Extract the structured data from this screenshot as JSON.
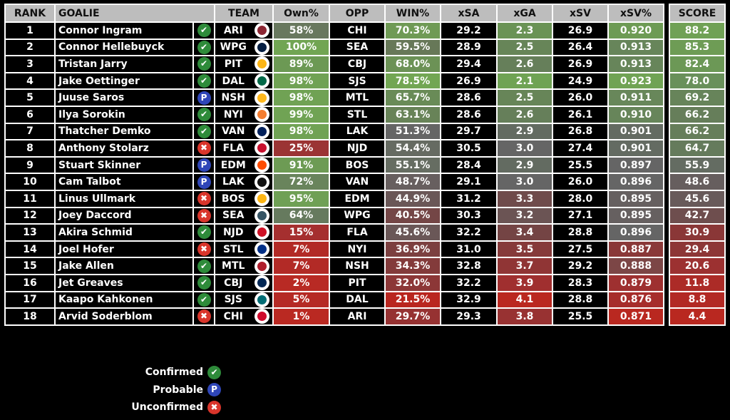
{
  "headers": {
    "rank": "RANK",
    "goalie": "GOALIE",
    "team": "TEAM",
    "own": "Own%",
    "opp": "OPP",
    "win": "WIN%",
    "xsa": "xSA",
    "xga": "xGA",
    "xsv": "xSV",
    "xsvp": "xSV%",
    "score": "SCORE"
  },
  "status_glyphs": {
    "confirmed": "✔",
    "probable": "P",
    "unconfirmed": "✖"
  },
  "team_colors": {
    "ARI": "#8c2633",
    "WPG": "#041e42",
    "PIT": "#fcb514",
    "DAL": "#006847",
    "NSH": "#ffb81c",
    "NYI": "#f47d30",
    "VAN": "#00205b",
    "FLA": "#c8102e",
    "EDM": "#ff4c00",
    "LAK": "#111111",
    "BOS": "#fcb514",
    "SEA": "#355464",
    "NJD": "#ce1126",
    "STL": "#002f87",
    "MTL": "#af1e2d",
    "CBJ": "#002654",
    "SJS": "#006d75",
    "CHI": "#cf0a2c"
  },
  "rows": [
    {
      "rank": "1",
      "goalie": "Connor Ingram",
      "status": "confirmed",
      "team": "ARI",
      "own": "58%",
      "opp": "CHI",
      "win": "70.3%",
      "xsa": "29.2",
      "xga": "2.3",
      "xsv": "26.9",
      "xsvp": "0.920",
      "score": "88.2",
      "c": {
        "own": "#68785e",
        "win": "#6f9a55",
        "xga": "#6a9355",
        "xsvp": "#6d9b54",
        "score": "#70a155"
      }
    },
    {
      "rank": "2",
      "goalie": "Connor Hellebuyck",
      "status": "confirmed",
      "team": "WPG",
      "own": "100%",
      "opp": "SEA",
      "win": "59.5%",
      "xsa": "28.9",
      "xga": "2.5",
      "xsv": "26.4",
      "xsvp": "0.913",
      "score": "85.3",
      "c": {
        "own": "#71a553",
        "win": "#677858",
        "xga": "#678558",
        "xsvp": "#67855a",
        "score": "#6e9c55"
      }
    },
    {
      "rank": "3",
      "goalie": "Tristan Jarry",
      "status": "confirmed",
      "team": "PIT",
      "own": "89%",
      "opp": "CBJ",
      "win": "68.0%",
      "xsa": "29.4",
      "xga": "2.6",
      "xsv": "26.9",
      "xsvp": "0.913",
      "score": "82.4",
      "c": {
        "own": "#6c9954",
        "win": "#6c9256",
        "xga": "#667f5a",
        "xsvp": "#67855a",
        "score": "#6c9856"
      }
    },
    {
      "rank": "4",
      "goalie": "Jake Oettinger",
      "status": "confirmed",
      "team": "DAL",
      "own": "98%",
      "opp": "SJS",
      "win": "78.5%",
      "xsa": "26.9",
      "xga": "2.1",
      "xsv": "24.9",
      "xsvp": "0.923",
      "score": "78.0",
      "c": {
        "own": "#70a254",
        "win": "#72a653",
        "xga": "#6fa354",
        "xsvp": "#70a354",
        "score": "#69905a"
      }
    },
    {
      "rank": "5",
      "goalie": "Juuse Saros",
      "status": "probable",
      "team": "NSH",
      "own": "98%",
      "opp": "MTL",
      "win": "65.7%",
      "xsa": "28.6",
      "xga": "2.5",
      "xsv": "26.0",
      "xsvp": "0.911",
      "score": "69.2",
      "c": {
        "own": "#70a254",
        "win": "#698b57",
        "xga": "#678558",
        "xsvp": "#68875a",
        "score": "#67845a"
      }
    },
    {
      "rank": "6",
      "goalie": "Ilya Sorokin",
      "status": "confirmed",
      "team": "NYI",
      "own": "99%",
      "opp": "STL",
      "win": "63.1%",
      "xsa": "28.6",
      "xga": "2.6",
      "xsv": "26.1",
      "xsvp": "0.910",
      "score": "66.2",
      "c": {
        "own": "#70a354",
        "win": "#688358",
        "xga": "#667f5a",
        "xsvp": "#67855a",
        "score": "#667e5a"
      }
    },
    {
      "rank": "7",
      "goalie": "Thatcher Demko",
      "status": "confirmed",
      "team": "VAN",
      "own": "98%",
      "opp": "LAK",
      "win": "51.3%",
      "xsa": "29.7",
      "xga": "2.9",
      "xsv": "26.8",
      "xsvp": "0.901",
      "score": "66.2",
      "c": {
        "own": "#70a254",
        "win": "#656565",
        "xga": "#636b61",
        "xsvp": "#646b62",
        "score": "#667e5a"
      }
    },
    {
      "rank": "8",
      "goalie": "Anthony Stolarz",
      "status": "unconfirmed",
      "team": "FLA",
      "own": "25%",
      "opp": "NJD",
      "win": "54.4%",
      "xsa": "30.5",
      "xga": "3.0",
      "xsv": "27.4",
      "xsvp": "0.901",
      "score": "64.7",
      "c": {
        "own": "#9b3434",
        "win": "#666b62",
        "xga": "#656565",
        "xsvp": "#646b62",
        "score": "#657b5c"
      }
    },
    {
      "rank": "9",
      "goalie": "Stuart Skinner",
      "status": "probable",
      "team": "EDM",
      "own": "91%",
      "opp": "BOS",
      "win": "55.1%",
      "xsa": "28.4",
      "xga": "2.9",
      "xsv": "25.5",
      "xsvp": "0.897",
      "score": "55.9",
      "c": {
        "own": "#6d9b54",
        "win": "#666d62",
        "xga": "#636b61",
        "xsvp": "#656565",
        "score": "#646c62"
      }
    },
    {
      "rank": "10",
      "goalie": "Cam Talbot",
      "status": "probable",
      "team": "LAK",
      "own": "72%",
      "opp": "VAN",
      "win": "48.7%",
      "xsa": "29.1",
      "xga": "3.0",
      "xsv": "26.0",
      "xsvp": "0.896",
      "score": "48.6",
      "c": {
        "own": "#69845c",
        "win": "#675f5f",
        "xga": "#656565",
        "xsvp": "#656565",
        "score": "#665e5e"
      }
    },
    {
      "rank": "11",
      "goalie": "Linus Ullmark",
      "status": "unconfirmed",
      "team": "BOS",
      "own": "95%",
      "opp": "EDM",
      "win": "44.9%",
      "xsa": "31.2",
      "xga": "3.3",
      "xsv": "28.0",
      "xsvp": "0.895",
      "score": "45.6",
      "c": {
        "own": "#6fa055",
        "win": "#6a5757",
        "xga": "#6f4b4b",
        "xsvp": "#666060",
        "score": "#685a5a"
      }
    },
    {
      "rank": "12",
      "goalie": "Joey Daccord",
      "status": "unconfirmed",
      "team": "SEA",
      "own": "64%",
      "opp": "WPG",
      "win": "40.5%",
      "xsa": "30.3",
      "xga": "3.2",
      "xsv": "27.1",
      "xsvp": "0.895",
      "score": "42.7",
      "c": {
        "own": "#667a5e",
        "win": "#744646",
        "xga": "#6b5454",
        "xsvp": "#666060",
        "score": "#6e4e4e"
      }
    },
    {
      "rank": "13",
      "goalie": "Akira Schmid",
      "status": "confirmed",
      "team": "NJD",
      "own": "15%",
      "opp": "FLA",
      "win": "45.6%",
      "xsa": "32.2",
      "xga": "3.4",
      "xsv": "28.8",
      "xsvp": "0.896",
      "score": "30.9",
      "c": {
        "own": "#a52f2f",
        "win": "#6a5757",
        "xga": "#744444",
        "xsvp": "#656565",
        "score": "#8a3737"
      }
    },
    {
      "rank": "14",
      "goalie": "Joel Hofer",
      "status": "unconfirmed",
      "team": "STL",
      "own": "7%",
      "opp": "NYI",
      "win": "36.9%",
      "xsa": "31.0",
      "xga": "3.5",
      "xsv": "27.5",
      "xsvp": "0.887",
      "score": "29.4",
      "c": {
        "own": "#b22a26",
        "win": "#7c4040",
        "xga": "#863a3a",
        "xsvp": "#8a3838",
        "score": "#8d3636"
      }
    },
    {
      "rank": "15",
      "goalie": "Jake Allen",
      "status": "confirmed",
      "team": "MTL",
      "own": "7%",
      "opp": "NSH",
      "win": "34.3%",
      "xsa": "32.8",
      "xga": "3.7",
      "xsv": "29.2",
      "xsvp": "0.888",
      "score": "20.6",
      "c": {
        "own": "#b22a26",
        "win": "#833b3b",
        "xga": "#903535",
        "xsvp": "#7c4646",
        "score": "#9c3131"
      }
    },
    {
      "rank": "16",
      "goalie": "Jet Greaves",
      "status": "confirmed",
      "team": "CBJ",
      "own": "2%",
      "opp": "PIT",
      "win": "32.0%",
      "xsa": "32.2",
      "xga": "3.9",
      "xsv": "28.3",
      "xsvp": "0.879",
      "score": "11.8",
      "c": {
        "own": "#b82a24",
        "win": "#8c3737",
        "xga": "#a02f2f",
        "xsvp": "#9e3030",
        "score": "#ac2b27"
      }
    },
    {
      "rank": "17",
      "goalie": "Kaapo Kahkonen",
      "status": "confirmed",
      "team": "SJS",
      "own": "5%",
      "opp": "DAL",
      "win": "21.5%",
      "xsa": "32.9",
      "xga": "4.1",
      "xsv": "28.8",
      "xsvp": "0.876",
      "score": "8.8",
      "c": {
        "own": "#b52a25",
        "win": "#b9261f",
        "xga": "#ba2820",
        "xsvp": "#a62d2b",
        "score": "#b22924"
      }
    },
    {
      "rank": "18",
      "goalie": "Arvid Soderblom",
      "status": "unconfirmed",
      "team": "CHI",
      "own": "1%",
      "opp": "ARI",
      "win": "29.7%",
      "xsa": "29.3",
      "xga": "3.8",
      "xsv": "25.5",
      "xsvp": "0.871",
      "score": "4.4",
      "c": {
        "own": "#ba2922",
        "win": "#963232",
        "xga": "#983232",
        "xsvp": "#b92820",
        "score": "#b92820"
      }
    }
  ],
  "legend": [
    {
      "label": "Confirmed",
      "status": "confirmed"
    },
    {
      "label": "Probable",
      "status": "probable"
    },
    {
      "label": "Unconfirmed",
      "status": "unconfirmed"
    }
  ]
}
